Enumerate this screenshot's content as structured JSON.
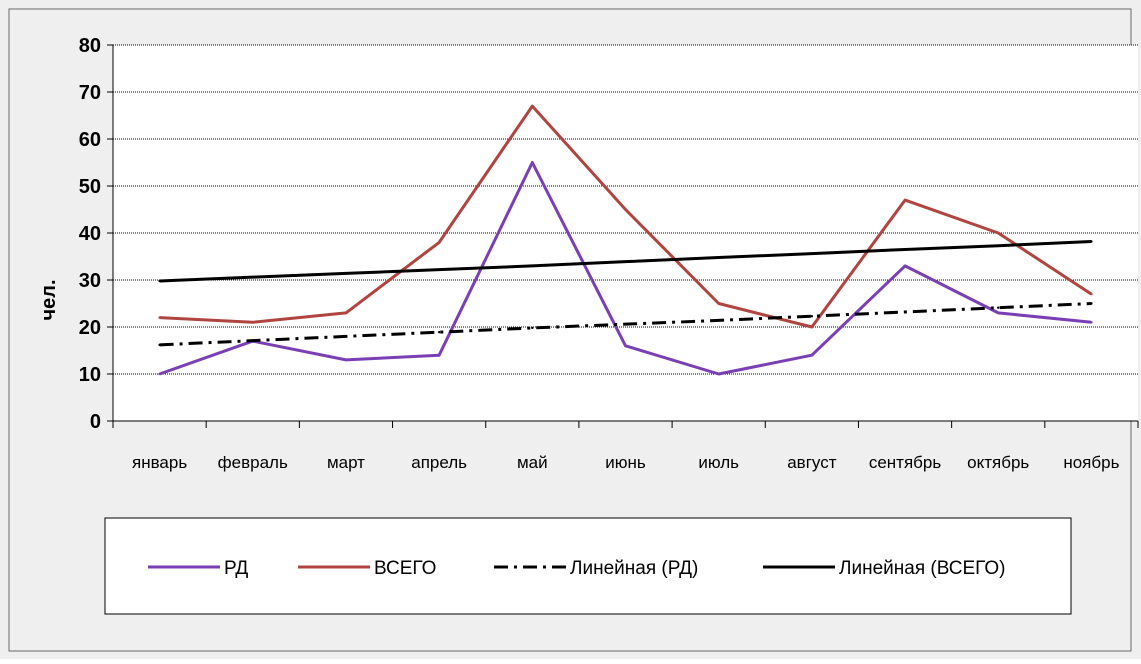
{
  "chart_data": {
    "type": "line",
    "categories": [
      "январь",
      "февраль",
      "март",
      "апрель",
      "май",
      "июнь",
      "июль",
      "август",
      "сентябрь",
      "октябрь",
      "ноябрь"
    ],
    "series": [
      {
        "name": "РД",
        "color": "#7a3fb5",
        "style": "solid",
        "values": [
          10,
          17,
          13,
          14,
          55,
          16,
          10,
          14,
          33,
          23,
          21
        ]
      },
      {
        "name": "ВСЕГО",
        "color": "#b04540",
        "style": "solid",
        "values": [
          22,
          21,
          23,
          38,
          67,
          45,
          25,
          20,
          47,
          40,
          27
        ]
      },
      {
        "name": "Линейная (РД)",
        "color": "#000000",
        "style": "dash-dot",
        "values": [
          16.2,
          17.1,
          18.0,
          18.9,
          19.8,
          20.6,
          21.4,
          22.3,
          23.2,
          24.1,
          25.0
        ]
      },
      {
        "name": "Линейная (ВСЕГО)",
        "color": "#000000",
        "style": "solid",
        "values": [
          29.8,
          30.6,
          31.4,
          32.2,
          33.0,
          33.9,
          34.8,
          35.6,
          36.5,
          37.3,
          38.2
        ]
      }
    ],
    "ylabel": "чел.",
    "ylim": [
      0,
      80
    ],
    "yticks": [
      "0",
      "10",
      "20",
      "30",
      "40",
      "50",
      "60",
      "70",
      "80"
    ],
    "grid": true,
    "legend_position": "bottom",
    "background_color": "#efefef"
  }
}
